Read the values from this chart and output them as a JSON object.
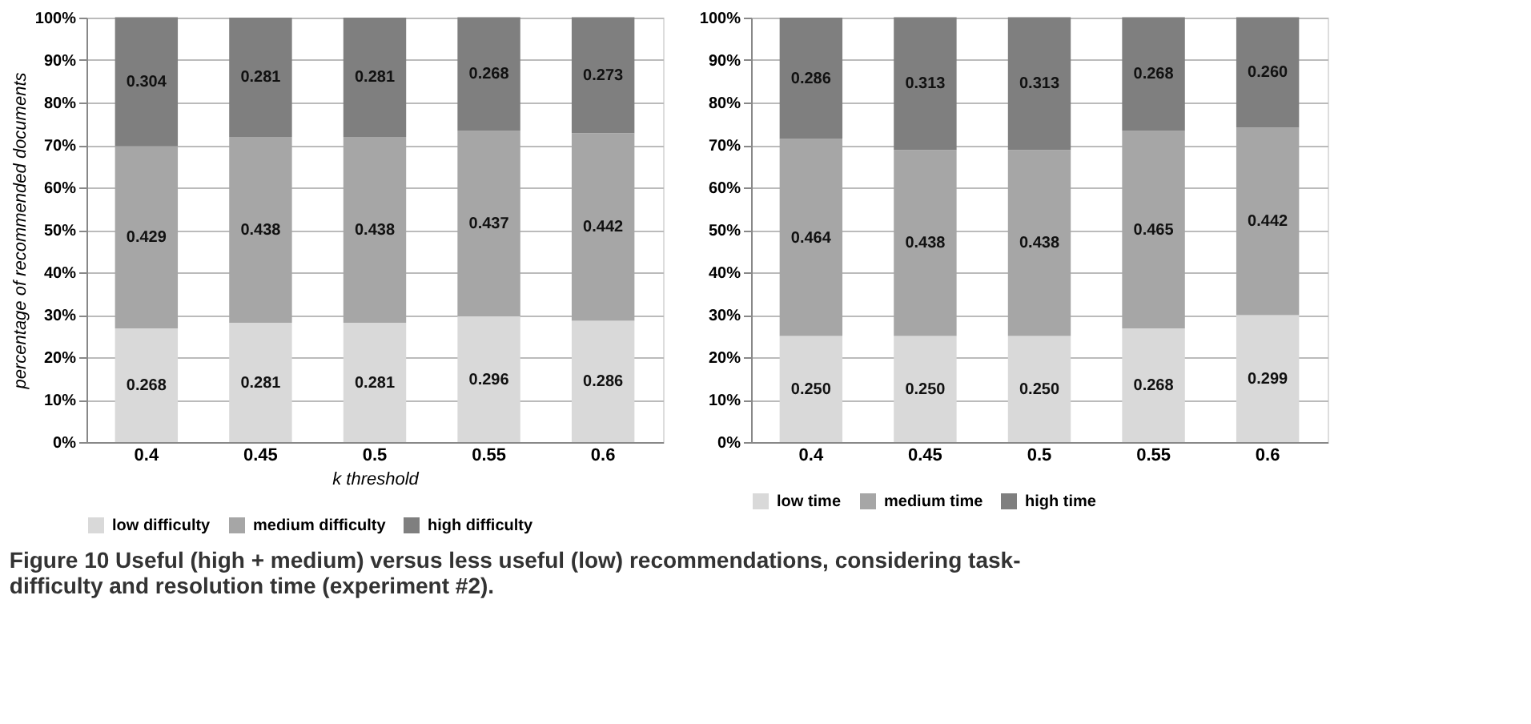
{
  "chart_data": [
    {
      "type": "bar",
      "stacked": true,
      "ylabel": "percentage of recommended documents",
      "xlabel": "k threshold",
      "categories": [
        "0.4",
        "0.45",
        "0.5",
        "0.55",
        "0.6"
      ],
      "ylim": [
        0,
        1
      ],
      "yticks": [
        {
          "value": 0,
          "label": "0%"
        },
        {
          "value": 0.1,
          "label": "10%"
        },
        {
          "value": 0.2,
          "label": "20%"
        },
        {
          "value": 0.3,
          "label": "30%"
        },
        {
          "value": 0.4,
          "label": "40%"
        },
        {
          "value": 0.5,
          "label": "50%"
        },
        {
          "value": 0.6,
          "label": "60%"
        },
        {
          "value": 0.7,
          "label": "70%"
        },
        {
          "value": 0.8,
          "label": "80%"
        },
        {
          "value": 0.9,
          "label": "90%"
        },
        {
          "value": 1,
          "label": "100%"
        }
      ],
      "grid": "y",
      "legend": "bottom",
      "annotations": [
        "Figure 10 Useful (high + medium) versus less useful (low) recommendations, considering task-difficulty and resolution time (experiment #2)."
      ],
      "series": [
        {
          "name": "low difficulty",
          "color": "#d9d9d9",
          "values": [
            0.268,
            0.281,
            0.281,
            0.296,
            0.286
          ],
          "value_labels": [
            "0.268",
            "0.281",
            "0.281",
            "0.296",
            "0.286"
          ]
        },
        {
          "name": "medium difficulty",
          "color": "#a6a6a6",
          "values": [
            0.429,
            0.438,
            0.438,
            0.437,
            0.442
          ],
          "value_labels": [
            "0.429",
            "0.438",
            "0.438",
            "0.437",
            "0.442"
          ]
        },
        {
          "name": "high difficulty",
          "color": "#7f7f7f",
          "values": [
            0.304,
            0.281,
            0.281,
            0.268,
            0.273
          ],
          "value_labels": [
            "0.304",
            "0.281",
            "0.281",
            "0.268",
            "0.273"
          ]
        }
      ]
    },
    {
      "type": "bar",
      "stacked": true,
      "categories": [
        "0.4",
        "0.45",
        "0.5",
        "0.55",
        "0.6"
      ],
      "ylim": [
        0,
        1
      ],
      "yticks": [
        {
          "value": 0,
          "label": "0%"
        },
        {
          "value": 0.1,
          "label": "10%"
        },
        {
          "value": 0.2,
          "label": "20%"
        },
        {
          "value": 0.3,
          "label": "30%"
        },
        {
          "value": 0.4,
          "label": "40%"
        },
        {
          "value": 0.5,
          "label": "50%"
        },
        {
          "value": 0.6,
          "label": "60%"
        },
        {
          "value": 0.7,
          "label": "70%"
        },
        {
          "value": 0.8,
          "label": "80%"
        },
        {
          "value": 0.9,
          "label": "90%"
        },
        {
          "value": 1,
          "label": "100%"
        }
      ],
      "grid": "y",
      "legend": "bottom",
      "series": [
        {
          "name": "low time",
          "color": "#d9d9d9",
          "values": [
            0.25,
            0.25,
            0.25,
            0.268,
            0.299
          ],
          "value_labels": [
            "0.250",
            "0.250",
            "0.250",
            "0.268",
            "0.299"
          ]
        },
        {
          "name": "medium time",
          "color": "#a6a6a6",
          "values": [
            0.464,
            0.438,
            0.438,
            0.465,
            0.442
          ],
          "value_labels": [
            "0.464",
            "0.438",
            "0.438",
            "0.465",
            "0.442"
          ]
        },
        {
          "name": "high time",
          "color": "#7f7f7f",
          "values": [
            0.286,
            0.313,
            0.313,
            0.268,
            0.26
          ],
          "value_labels": [
            "0.286",
            "0.313",
            "0.313",
            "0.268",
            "0.260"
          ]
        }
      ]
    }
  ]
}
